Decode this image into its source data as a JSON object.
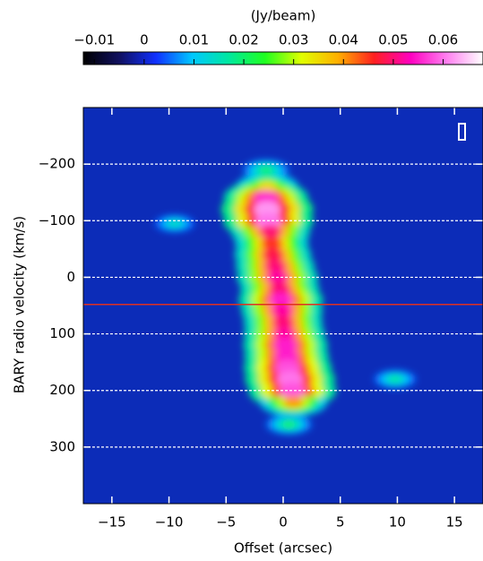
{
  "chart_data": {
    "type": "heatmap",
    "colorbar_label": "(Jy/beam)",
    "clim": [
      -0.0122,
      0.068
    ],
    "cticks": [
      {
        "value": -0.01,
        "label": "−0.01"
      },
      0,
      0.01,
      0.02,
      0.03,
      0.04,
      0.05,
      0.06
    ],
    "colormap": [
      "#000000",
      "#101060",
      "#1030ff",
      "#00c8ff",
      "#00e8a0",
      "#20ff20",
      "#e0ff00",
      "#ffb000",
      "#ff2020",
      "#ff00c0",
      "#ff80f0",
      "#ffffff"
    ],
    "x_label": "Offset (arcsec)",
    "y_label": "BARY radio velocity  (km/s)",
    "xlim": [
      -17.5,
      17.5
    ],
    "xticks": [
      {
        "value": -15,
        "label": "−15"
      },
      {
        "value": -10,
        "label": "−10"
      },
      {
        "value": -5,
        "label": "−5"
      },
      0,
      5,
      10,
      15
    ],
    "ylim": [
      -300,
      400
    ],
    "y_inverted": true,
    "yticks": [
      {
        "value": -200,
        "label": "−200"
      },
      {
        "value": -100,
        "label": "−100"
      },
      0,
      100,
      200,
      300
    ],
    "grid": true,
    "grid_color": "#ffffff",
    "marker_line": {
      "y": 48,
      "color": "#e03020"
    },
    "points": {
      "x": [
        -1.5,
        -1.4,
        -1.5,
        -1.4,
        -1.3,
        -1.1,
        -1.0,
        -0.9,
        -0.7,
        -0.5,
        -0.3,
        -0.2,
        -0.1,
        0.0,
        0.1,
        0.2,
        0.3,
        0.4,
        0.6,
        0.8,
        0.9,
        0.5,
        -9.5,
        9.8
      ],
      "y": [
        -190,
        -160,
        -140,
        -120,
        -100,
        -80,
        -60,
        -40,
        -20,
        0,
        20,
        40,
        60,
        80,
        100,
        120,
        140,
        160,
        180,
        200,
        220,
        260,
        -95,
        180
      ],
      "values": [
        0.02,
        0.035,
        0.055,
        0.062,
        0.06,
        0.05,
        0.045,
        0.048,
        0.05,
        0.052,
        0.05,
        0.055,
        0.052,
        0.05,
        0.052,
        0.055,
        0.055,
        0.058,
        0.06,
        0.058,
        0.04,
        0.02,
        0.015,
        0.017
      ]
    }
  }
}
